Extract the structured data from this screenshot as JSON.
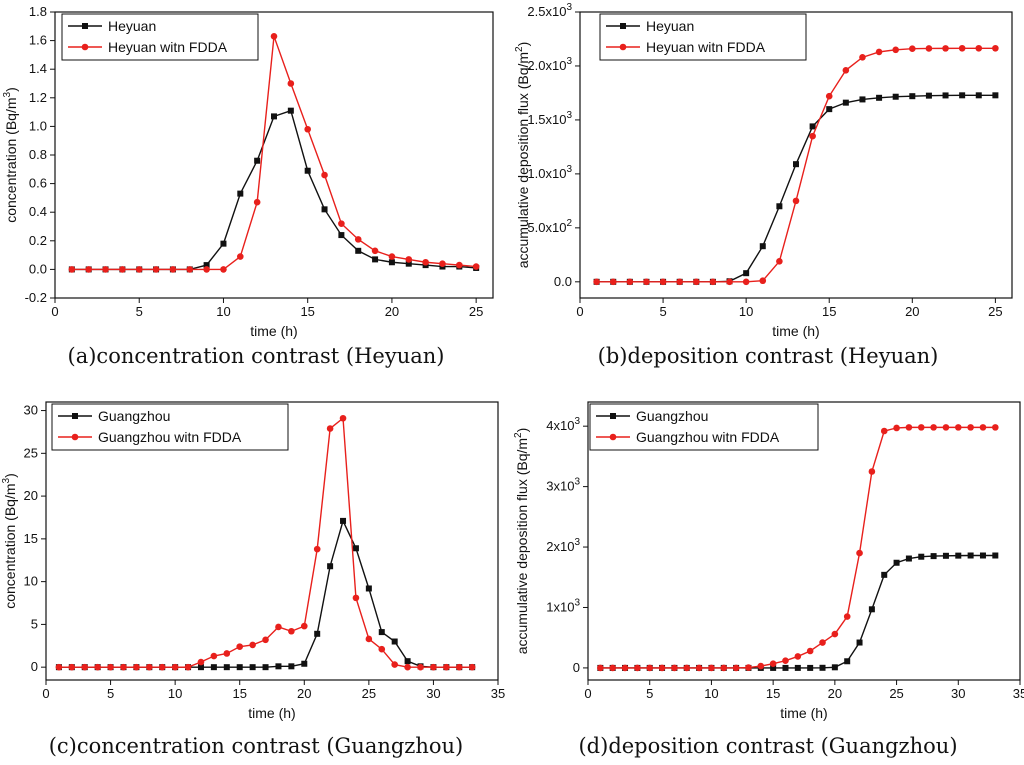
{
  "chart_data": [
    {
      "type": "line",
      "caption": "(a)concentration contrast (Heyuan)",
      "xlabel": "time (h)",
      "ylabel": "concentration (Bq/m",
      "ylabel_sup": "3",
      "ylabel_end": ")",
      "xlim": [
        0,
        26
      ],
      "ylim": [
        -0.2,
        1.8
      ],
      "xticks": [
        "0",
        "5",
        "10",
        "15",
        "20",
        "25"
      ],
      "yticks": [
        "-0.2",
        "0.0",
        "0.2",
        "0.4",
        "0.6",
        "0.8",
        "1.0",
        "1.2",
        "1.4",
        "1.6",
        "1.8"
      ],
      "x": [
        1,
        2,
        3,
        4,
        5,
        6,
        7,
        8,
        9,
        10,
        11,
        12,
        13,
        14,
        15,
        16,
        17,
        18,
        19,
        20,
        21,
        22,
        23,
        24,
        25
      ],
      "series": [
        {
          "name": "Heyuan",
          "color": "#111111",
          "marker": "square",
          "values": [
            0,
            0,
            0,
            0,
            0,
            0,
            0,
            0,
            0.03,
            0.18,
            0.53,
            0.76,
            1.07,
            1.11,
            0.69,
            0.42,
            0.24,
            0.13,
            0.07,
            0.05,
            0.04,
            0.03,
            0.02,
            0.02,
            0.01
          ]
        },
        {
          "name": "Heyuan witn FDDA",
          "color": "#e8201c",
          "marker": "circle",
          "values": [
            0,
            0,
            0,
            0,
            0,
            0,
            0,
            0,
            0,
            0,
            0.09,
            0.47,
            1.63,
            1.3,
            0.98,
            0.66,
            0.32,
            0.21,
            0.13,
            0.09,
            0.07,
            0.05,
            0.04,
            0.03,
            0.02
          ]
        }
      ]
    },
    {
      "type": "line",
      "caption": "(b)deposition contrast (Heyuan)",
      "xlabel": "time (h)",
      "ylabel": "accumulative deposition flux (Bq/m",
      "ylabel_sup": "2",
      "ylabel_end": ")",
      "xlim": [
        0,
        26
      ],
      "ylim": [
        -150,
        2500
      ],
      "xticks": [
        "0",
        "5",
        "10",
        "15",
        "20",
        "25"
      ],
      "yticks": [
        "0.0",
        "5.0x10",
        "1.0x10",
        "1.5x10",
        "2.0x10",
        "2.5x10"
      ],
      "ytick_sups": [
        "",
        "2",
        "3",
        "3",
        "3",
        "3"
      ],
      "x": [
        1,
        2,
        3,
        4,
        5,
        6,
        7,
        8,
        9,
        10,
        11,
        12,
        13,
        14,
        15,
        16,
        17,
        18,
        19,
        20,
        21,
        22,
        23,
        24,
        25
      ],
      "series": [
        {
          "name": "Heyuan",
          "color": "#111111",
          "marker": "square",
          "values": [
            0,
            0,
            0,
            0,
            0,
            0,
            0,
            0,
            5,
            80,
            330,
            700,
            1090,
            1440,
            1600,
            1660,
            1690,
            1705,
            1715,
            1720,
            1725,
            1727,
            1728,
            1728,
            1728
          ]
        },
        {
          "name": "Heyuan witn FDDA",
          "color": "#e8201c",
          "marker": "circle",
          "values": [
            0,
            0,
            0,
            0,
            0,
            0,
            0,
            0,
            0,
            0,
            10,
            190,
            750,
            1350,
            1720,
            1960,
            2080,
            2130,
            2150,
            2160,
            2162,
            2163,
            2164,
            2164,
            2164
          ]
        }
      ]
    },
    {
      "type": "line",
      "caption": "(c)concentration contrast (Guangzhou)",
      "xlabel": "time (h)",
      "ylabel": "concentration (Bq/m",
      "ylabel_sup": "3",
      "ylabel_end": ")",
      "xlim": [
        0,
        35
      ],
      "ylim": [
        -1.5,
        31
      ],
      "xticks": [
        "0",
        "5",
        "10",
        "15",
        "20",
        "25",
        "30",
        "35"
      ],
      "yticks": [
        "0",
        "5",
        "10",
        "15",
        "20",
        "25",
        "30"
      ],
      "x": [
        1,
        2,
        3,
        4,
        5,
        6,
        7,
        8,
        9,
        10,
        11,
        12,
        13,
        14,
        15,
        16,
        17,
        18,
        19,
        20,
        21,
        22,
        23,
        24,
        25,
        26,
        27,
        28,
        29,
        30,
        31,
        32,
        33
      ],
      "series": [
        {
          "name": "Guangzhou",
          "color": "#111111",
          "marker": "square",
          "values": [
            0,
            0,
            0,
            0,
            0,
            0,
            0,
            0,
            0,
            0,
            0,
            0,
            0,
            0,
            0,
            0,
            0,
            0.1,
            0.1,
            0.4,
            3.9,
            11.8,
            17.1,
            13.9,
            9.2,
            4.1,
            3.0,
            0.7,
            0.1,
            0,
            0,
            0,
            0
          ]
        },
        {
          "name": "Guangzhou witn FDDA",
          "color": "#e8201c",
          "marker": "circle",
          "values": [
            0,
            0,
            0,
            0,
            0,
            0,
            0,
            0,
            0,
            0,
            0,
            0.6,
            1.3,
            1.6,
            2.4,
            2.6,
            3.2,
            4.7,
            4.2,
            4.8,
            13.8,
            27.9,
            29.1,
            8.1,
            3.3,
            2.1,
            0.3,
            0,
            0,
            0,
            0,
            0,
            0
          ]
        }
      ]
    },
    {
      "type": "line",
      "caption": "(d)deposition contrast (Guangzhou)",
      "xlabel": "time (h)",
      "ylabel": "accumulative deposition flux (Bq/m",
      "ylabel_sup": "2",
      "ylabel_end": ")",
      "xlim": [
        0,
        35
      ],
      "ylim": [
        -200,
        4400
      ],
      "xticks": [
        "0",
        "5",
        "10",
        "15",
        "20",
        "25",
        "30",
        "35"
      ],
      "yticks": [
        "0",
        "1x10",
        "2x10",
        "3x10",
        "4x10"
      ],
      "ytick_sups": [
        "",
        "3",
        "3",
        "3",
        "3"
      ],
      "x": [
        1,
        2,
        3,
        4,
        5,
        6,
        7,
        8,
        9,
        10,
        11,
        12,
        13,
        14,
        15,
        16,
        17,
        18,
        19,
        20,
        21,
        22,
        23,
        24,
        25,
        26,
        27,
        28,
        29,
        30,
        31,
        32,
        33
      ],
      "series": [
        {
          "name": "Guangzhou",
          "color": "#111111",
          "marker": "square",
          "values": [
            0,
            0,
            0,
            0,
            0,
            0,
            0,
            0,
            0,
            0,
            0,
            0,
            0,
            0,
            0,
            0,
            0,
            0,
            2,
            10,
            110,
            420,
            970,
            1540,
            1740,
            1810,
            1840,
            1850,
            1855,
            1858,
            1860,
            1860,
            1860
          ]
        },
        {
          "name": "Guangzhou witn FDDA",
          "color": "#e8201c",
          "marker": "circle",
          "values": [
            0,
            0,
            0,
            0,
            0,
            0,
            0,
            0,
            0,
            0,
            0,
            0,
            5,
            30,
            70,
            120,
            190,
            280,
            420,
            560,
            850,
            1900,
            3250,
            3920,
            3970,
            3980,
            3980,
            3980,
            3980,
            3980,
            3980,
            3980,
            3980
          ]
        }
      ]
    }
  ]
}
